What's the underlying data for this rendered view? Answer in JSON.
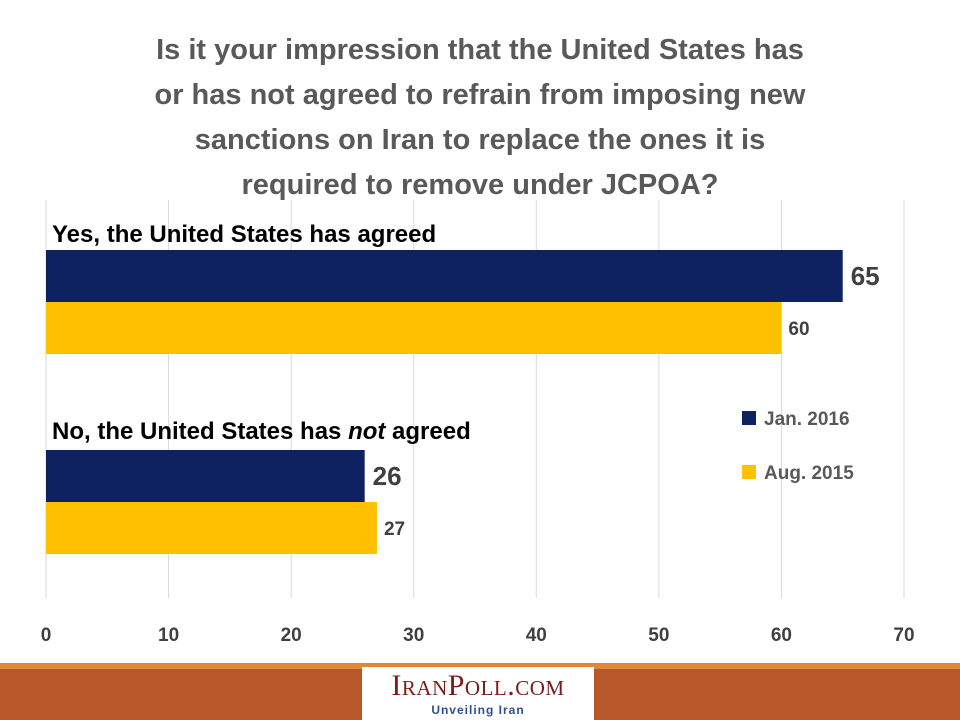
{
  "title": "Is it your impression that the United States has or has not agreed to refrain from imposing new sanctions on Iran to replace the ones it is required to remove under JCPOA?",
  "title_lines": [
    "Is it your impression that the United States has",
    "or has not agreed to refrain from imposing new",
    "sanctions on Iran to replace the ones it is",
    "required to remove under JCPOA?"
  ],
  "chart_data": {
    "type": "bar",
    "orientation": "horizontal",
    "categories": [
      "Yes, the United States has agreed",
      "No, the United States has not agreed"
    ],
    "category_emphasis": [
      "",
      "not"
    ],
    "series": [
      {
        "name": "Jan. 2016",
        "values": [
          65,
          26
        ],
        "color": "#0e2160"
      },
      {
        "name": "Aug. 2015",
        "values": [
          60,
          27
        ],
        "color": "#ffc000"
      }
    ],
    "xlim": [
      0,
      70
    ],
    "xticks": [
      0,
      10,
      20,
      30,
      40,
      50,
      60,
      70
    ],
    "grid": true,
    "legend_position": "right"
  },
  "footer": {
    "logo_text": "IranPoll.com",
    "logo_tagline": "Unveiling Iran",
    "stripe_light_color": "#e0883a",
    "stripe_dark_color": "#b8582a",
    "logo_color": "#7a1d18",
    "tagline_color": "#2f4f8f"
  }
}
